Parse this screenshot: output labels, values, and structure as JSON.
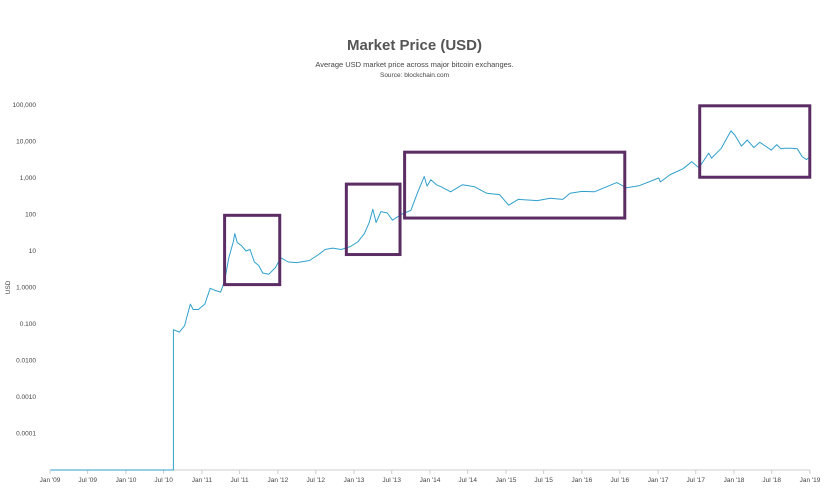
{
  "chart_data": {
    "type": "line",
    "title": "Market Price (USD)",
    "subtitle": "Average USD market price across major bitcoin exchanges.",
    "source": "Source: blockchain.com",
    "ylabel": "USD",
    "xlabel": "",
    "y_scale": "log",
    "grid": false,
    "line_color": "#2fa0cc",
    "highlight_color": "#5b2d64",
    "y_ticks": [
      {
        "value": 0.0001,
        "label": "0.0001"
      },
      {
        "value": 0.001,
        "label": "0.0010"
      },
      {
        "value": 0.01,
        "label": "0.0100"
      },
      {
        "value": 0.1,
        "label": "0.100"
      },
      {
        "value": 1,
        "label": "1.0000"
      },
      {
        "value": 10,
        "label": "10"
      },
      {
        "value": 100,
        "label": "100"
      },
      {
        "value": 1000,
        "label": "1,000"
      },
      {
        "value": 10000,
        "label": "10,000"
      },
      {
        "value": 100000,
        "label": "100,000"
      }
    ],
    "x_ticks": [
      {
        "value": "2009-01-01",
        "label": "Jan '09"
      },
      {
        "value": "2009-07-01",
        "label": "Jul '09"
      },
      {
        "value": "2010-01-01",
        "label": "Jan '10"
      },
      {
        "value": "2010-07-01",
        "label": "Jul '10"
      },
      {
        "value": "2011-01-01",
        "label": "Jan '11"
      },
      {
        "value": "2011-07-01",
        "label": "Jul '11"
      },
      {
        "value": "2012-01-01",
        "label": "Jan '12"
      },
      {
        "value": "2012-07-01",
        "label": "Jul '12"
      },
      {
        "value": "2013-01-01",
        "label": "Jan '13"
      },
      {
        "value": "2013-07-01",
        "label": "Jul '13"
      },
      {
        "value": "2014-01-01",
        "label": "Jan '14"
      },
      {
        "value": "2014-07-01",
        "label": "Jul '14"
      },
      {
        "value": "2015-01-01",
        "label": "Jan '15"
      },
      {
        "value": "2015-07-01",
        "label": "Jul '15"
      },
      {
        "value": "2016-01-01",
        "label": "Jan '16"
      },
      {
        "value": "2016-07-01",
        "label": "Jul '16"
      },
      {
        "value": "2017-01-01",
        "label": "Jan '17"
      },
      {
        "value": "2017-07-01",
        "label": "Jul '17"
      },
      {
        "value": "2018-01-01",
        "label": "Jan '18"
      },
      {
        "value": "2018-07-01",
        "label": "Jul '18"
      },
      {
        "value": "2019-01-01",
        "label": "Jan '19"
      }
    ],
    "x_range": [
      "2009-01-01",
      "2019-01-01"
    ],
    "y_range": [
      1e-05,
      100000
    ],
    "series": [
      {
        "x": [
          "2009-01-03",
          "2010-08-17",
          "2010-08-17",
          "2010-09-15",
          "2010-10-10",
          "2010-10-20",
          "2010-11-06",
          "2010-11-20",
          "2010-12-15",
          "2011-01-15",
          "2011-02-10",
          "2011-03-01",
          "2011-04-01",
          "2011-04-20",
          "2011-05-10",
          "2011-06-01",
          "2011-06-08",
          "2011-06-20",
          "2011-07-10",
          "2011-08-01",
          "2011-08-20",
          "2011-09-10",
          "2011-10-01",
          "2011-10-20",
          "2011-11-18",
          "2011-12-20",
          "2012-01-15",
          "2012-02-20",
          "2012-04-01",
          "2012-06-01",
          "2012-07-15",
          "2012-08-15",
          "2012-09-20",
          "2012-11-01",
          "2012-12-15",
          "2013-01-20",
          "2013-02-20",
          "2013-03-15",
          "2013-04-01",
          "2013-04-10",
          "2013-04-17",
          "2013-05-10",
          "2013-06-10",
          "2013-07-05",
          "2013-08-15",
          "2013-10-01",
          "2013-11-01",
          "2013-11-20",
          "2013-12-04",
          "2013-12-18",
          "2014-01-05",
          "2014-02-01",
          "2014-02-25",
          "2014-04-10",
          "2014-06-05",
          "2014-08-01",
          "2014-10-01",
          "2014-12-01",
          "2015-01-14",
          "2015-03-01",
          "2015-06-01",
          "2015-08-01",
          "2015-10-01",
          "2015-11-05",
          "2016-01-01",
          "2016-03-01",
          "2016-06-16",
          "2016-08-02",
          "2016-10-01",
          "2017-01-04",
          "2017-01-12",
          "2017-03-01",
          "2017-05-01",
          "2017-06-12",
          "2017-07-16",
          "2017-09-01",
          "2017-09-15",
          "2017-11-01",
          "2017-12-17",
          "2018-01-05",
          "2018-02-06",
          "2018-03-05",
          "2018-04-06",
          "2018-05-05",
          "2018-06-29",
          "2018-07-25",
          "2018-08-14",
          "2018-09-01",
          "2018-10-01",
          "2018-11-01",
          "2018-11-25",
          "2018-12-15",
          "2018-12-31"
        ],
        "y": [
          1e-05,
          1e-05,
          0.07,
          0.06,
          0.09,
          0.15,
          0.35,
          0.25,
          0.25,
          0.35,
          0.95,
          0.85,
          0.75,
          1.5,
          6.5,
          18,
          30,
          17,
          14,
          10,
          11,
          5,
          4,
          2.5,
          2.3,
          3.5,
          6.5,
          5,
          4.8,
          5.5,
          8,
          11,
          12,
          11,
          13.3,
          18,
          30,
          60,
          140,
          90,
          60,
          120,
          110,
          70,
          100,
          130,
          380,
          700,
          1100,
          600,
          900,
          650,
          570,
          420,
          650,
          580,
          380,
          350,
          180,
          260,
          240,
          280,
          260,
          380,
          430,
          420,
          750,
          540,
          610,
          1000,
          780,
          1250,
          1800,
          2800,
          1900,
          4800,
          3500,
          6500,
          19500,
          15000,
          7500,
          11000,
          6800,
          9500,
          5800,
          8200,
          6300,
          6500,
          6500,
          6300,
          3800,
          3200,
          3800
        ]
      }
    ],
    "highlights": [
      {
        "x0": "2011-04-20",
        "x1": "2012-01-10",
        "y0": 1.2,
        "y1": 95
      },
      {
        "x0": "2012-11-25",
        "x1": "2013-08-10",
        "y0": 8,
        "y1": 680
      },
      {
        "x0": "2013-09-01",
        "x1": "2016-07-25",
        "y0": 80,
        "y1": 5100
      },
      {
        "x0": "2017-07-20",
        "x1": "2018-12-31",
        "y0": 1050,
        "y1": 95000
      }
    ]
  }
}
